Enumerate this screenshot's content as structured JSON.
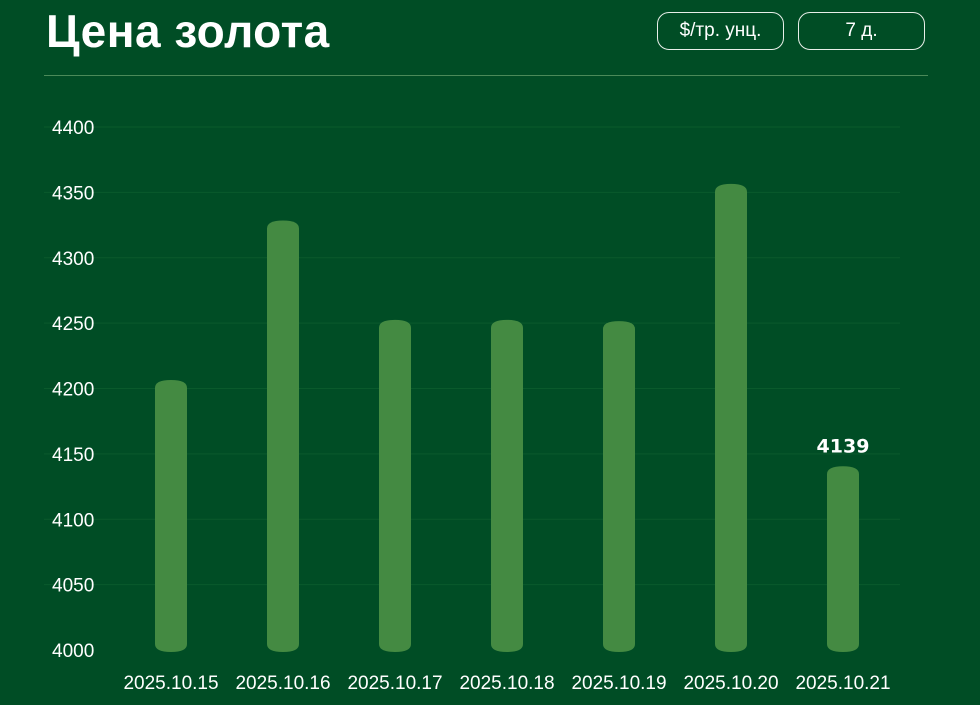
{
  "header": {
    "title": "Цена золота",
    "unit_button": "$/тр. унц.",
    "period_button": "7 д."
  },
  "colors": {
    "background": "#004d25",
    "bar": "#448a42",
    "grid": "#0a5a2c",
    "text": "#ffffff"
  },
  "chart_data": {
    "type": "bar",
    "title": "",
    "xlabel": "",
    "ylabel": "",
    "categories": [
      "2025.10.15",
      "2025.10.16",
      "2025.10.17",
      "2025.10.18",
      "2025.10.19",
      "2025.10.20",
      "2025.10.21"
    ],
    "values": [
      4205,
      4327,
      4251,
      4251,
      4250,
      4355,
      4139
    ],
    "ylim": [
      4000,
      4400
    ],
    "yticks": [
      4000,
      4050,
      4100,
      4150,
      4200,
      4250,
      4300,
      4350,
      4400
    ],
    "grid": true,
    "data_labels": [
      {
        "category": "2025.10.21",
        "text": "4139"
      }
    ]
  }
}
